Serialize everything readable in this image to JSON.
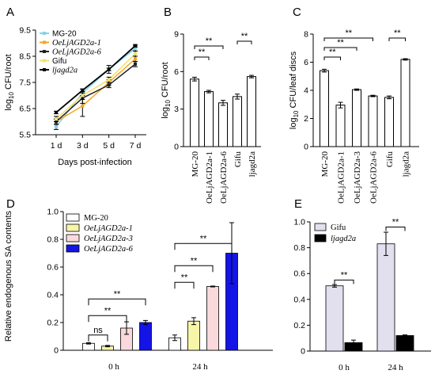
{
  "chart_data": [
    {
      "panel": "A",
      "type": "line",
      "xlabel": "Days post-infection",
      "ylabel": "log10 CFU/root",
      "ylabel_main": "log",
      "ylabel_sub": "10",
      "ylabel_rest": " CFU/root",
      "categories": [
        "1 d",
        "3 d",
        "5 d",
        "7 d"
      ],
      "ylim": [
        5.5,
        9.5
      ],
      "yticks": [
        "5.5",
        "6.5",
        "7.5",
        "8.5",
        "9.5"
      ],
      "legend_position": "top-left",
      "series": [
        {
          "name": "MG-20",
          "color": "#7fd3ee",
          "values": [
            5.8,
            7.1,
            8.0,
            8.8
          ],
          "errors": [
            0.1,
            0.15,
            0.15,
            0.1
          ]
        },
        {
          "name": "OeLjAGD2a-1",
          "color": "#f5a623",
          "values": [
            6.0,
            6.6,
            7.5,
            8.4
          ],
          "errors": [
            0.1,
            0.4,
            0.1,
            0.1
          ]
        },
        {
          "name": "OeLjAGD2a-6",
          "color": "#222222",
          "values": [
            6.0,
            6.9,
            7.4,
            8.2
          ],
          "errors": [
            0.1,
            0.2,
            0.1,
            0.1
          ]
        },
        {
          "name": "Gifu",
          "color": "#f2e06e",
          "values": [
            6.1,
            7.0,
            7.6,
            8.6
          ],
          "errors": [
            0.1,
            0.15,
            0.1,
            0.1
          ]
        },
        {
          "name": "ljagd2a",
          "color": "#000000",
          "values": [
            6.35,
            7.2,
            8.0,
            8.9
          ],
          "errors": [
            0.05,
            0.05,
            0.05,
            0.05
          ]
        }
      ]
    },
    {
      "panel": "B",
      "type": "bar",
      "ylabel": "log10 CFU/root",
      "ylabel_main": "log",
      "ylabel_sub": "10",
      "ylabel_rest": " CFU/root",
      "categories": [
        "MG-20",
        "OeLjAGD2a-1",
        "OeLjAGD2a-6",
        "Gifu",
        "ljagd2a"
      ],
      "values": [
        5.4,
        4.4,
        3.5,
        4.0,
        5.6
      ],
      "errors": [
        0.15,
        0.1,
        0.2,
        0.2,
        0.1
      ],
      "ylim": [
        0,
        9
      ],
      "yticks": [
        "0",
        "3",
        "6",
        "9"
      ],
      "significance": [
        {
          "from": 0,
          "to": 1,
          "label": "**"
        },
        {
          "from": 0,
          "to": 2,
          "label": "**"
        },
        {
          "from": 3,
          "to": 4,
          "label": "**"
        }
      ]
    },
    {
      "panel": "C",
      "type": "bar",
      "ylabel": "log10 CFU/leaf discs",
      "ylabel_main": "log",
      "ylabel_sub": "10",
      "ylabel_rest": " CFU/leaf discs",
      "categories": [
        "MG-20",
        "OeLjAGD2a-1",
        "OeLjAGD2a-3",
        "OeLjAGD2a-6",
        "Gifu",
        "ljagd2a"
      ],
      "values": [
        5.4,
        2.95,
        4.05,
        3.6,
        3.5,
        6.2
      ],
      "errors": [
        0.1,
        0.2,
        0.05,
        0.05,
        0.1,
        0.05
      ],
      "ylim": [
        0,
        8
      ],
      "yticks": [
        "0",
        "2",
        "4",
        "6",
        "8"
      ],
      "significance": [
        {
          "from": 0,
          "to": 1,
          "label": "**"
        },
        {
          "from": 0,
          "to": 2,
          "label": "**"
        },
        {
          "from": 0,
          "to": 3,
          "label": "**"
        },
        {
          "from": 4,
          "to": 5,
          "label": "**"
        }
      ]
    },
    {
      "panel": "D",
      "type": "bar",
      "ylabel": "Relative endogenous SA contents",
      "categories": [
        "0 h",
        "24 h"
      ],
      "ylim": [
        0,
        1.0
      ],
      "yticks": [
        "0",
        "0.2",
        "0.4",
        "0.6",
        "0.8",
        "1.0"
      ],
      "legend_position": "top-left",
      "series": [
        {
          "name": "MG-20",
          "color": "#ffffff",
          "values": [
            0.05,
            0.09
          ],
          "errors": [
            0.005,
            0.02
          ]
        },
        {
          "name": "OeLjAGD2a-1",
          "color": "#f7f5a8",
          "values": [
            0.03,
            0.21
          ],
          "errors": [
            0.005,
            0.025
          ]
        },
        {
          "name": "OeLjAGD2a-3",
          "color": "#fad9dc",
          "values": [
            0.16,
            0.46
          ],
          "errors": [
            0.045,
            0.003
          ]
        },
        {
          "name": "OeLjAGD2a-6",
          "color": "#1414e6",
          "values": [
            0.2,
            0.7
          ],
          "errors": [
            0.015,
            0.22
          ]
        }
      ],
      "significance": [
        {
          "group": 0,
          "from": 0,
          "to": 1,
          "label": "ns",
          "level": 0.11
        },
        {
          "group": 0,
          "from": 0,
          "to": 2,
          "label": "**",
          "level": 0.25
        },
        {
          "group": 0,
          "from": 0,
          "to": 3,
          "label": "**",
          "level": 0.37
        },
        {
          "group": 1,
          "from": 0,
          "to": 1,
          "label": "**",
          "level": 0.49
        },
        {
          "group": 1,
          "from": 0,
          "to": 2,
          "label": "**",
          "level": 0.61
        },
        {
          "group": 1,
          "from": 0,
          "to": 3,
          "label": "**",
          "level": 0.77
        }
      ]
    },
    {
      "panel": "E",
      "type": "bar",
      "categories": [
        "0 h",
        "24 h"
      ],
      "ylim": [
        0,
        1.0
      ],
      "yticks": [
        "0",
        "0.2",
        "0.4",
        "0.6",
        "0.8",
        "1.0"
      ],
      "legend_position": "top-left",
      "series": [
        {
          "name": "Gifu",
          "color": "#e2e0ee",
          "values": [
            0.505,
            0.83
          ],
          "errors": [
            0.01,
            0.09
          ]
        },
        {
          "name": "ljagd2a",
          "color": "#000000",
          "values": [
            0.065,
            0.12
          ],
          "errors": [
            0.02,
            0.005
          ]
        }
      ],
      "significance": [
        {
          "group": 0,
          "label": "**",
          "level": 0.55
        },
        {
          "group": 1,
          "label": "**",
          "level": 0.96
        }
      ]
    }
  ]
}
